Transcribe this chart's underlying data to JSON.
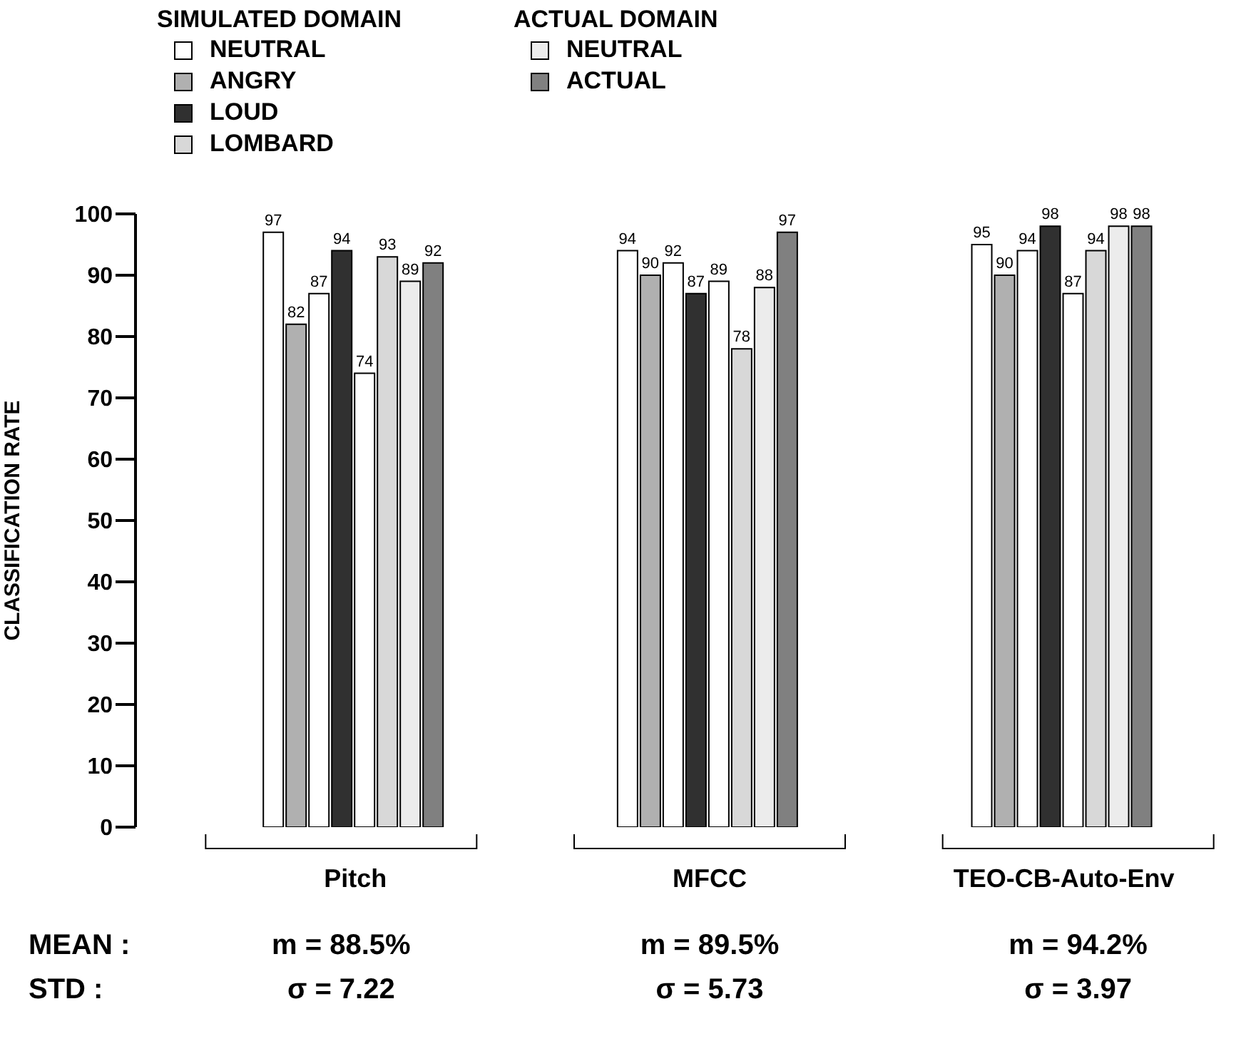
{
  "chart_data": {
    "type": "bar",
    "ylabel": "CLASSIFICATION  RATE",
    "categories": [
      "Pitch",
      "MFCC",
      "TEO-CB-Auto-Env"
    ],
    "series": [
      {
        "name": "NEUTRAL",
        "color": "#ffffff",
        "values": [
          97,
          94,
          95
        ]
      },
      {
        "name": "ANGRY",
        "color": "#b0b0b0",
        "values": [
          82,
          90,
          90
        ]
      },
      {
        "color": "#ffffff",
        "values": [
          87,
          92,
          94
        ]
      },
      {
        "name": "LOUD",
        "color": "#303030",
        "values": [
          94,
          87,
          98
        ]
      },
      {
        "color": "#ffffff",
        "values": [
          74,
          89,
          87
        ]
      },
      {
        "name": "LOMBARD",
        "color": "#d8d8d8",
        "values": [
          93,
          78,
          94
        ]
      },
      {
        "name": "NEUTRAL",
        "color": "#ececec",
        "values": [
          89,
          88,
          98
        ]
      },
      {
        "name": "ACTUAL",
        "color": "#808080",
        "values": [
          92,
          97,
          98
        ]
      }
    ],
    "ylim": [
      0,
      100
    ],
    "yticks": [
      0,
      10,
      20,
      30,
      40,
      50,
      60,
      70,
      80,
      90,
      100
    ],
    "grid": false,
    "legend": "top left",
    "data_labels": true,
    "annotations": [
      "SIMULATED DOMAIN",
      "ACTUAL DOMAIN",
      "MEAN :",
      "m = 88.5%",
      "m = 89.5%",
      "m = 94.2%",
      "STD :",
      "σ = 7.22",
      "σ = 5.73",
      "σ = 3.97"
    ]
  }
}
